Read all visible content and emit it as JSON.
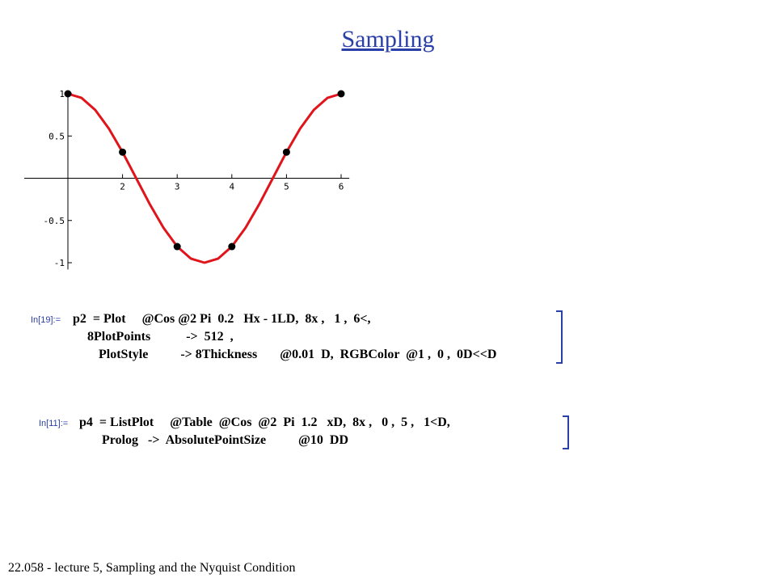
{
  "slide": {
    "title": "Sampling",
    "footer": "22.058 - lecture 5, Sampling and the Nyquist Condition"
  },
  "cells": [
    {
      "label": "In[19]:=",
      "lines": [
        "p2  = Plot     @Cos @2 Pi  0.2   Hx - 1LD,  8x ,   1 ,  6<,",
        "8PlotPoints           ->  512  ,",
        "PlotStyle          -> 8Thickness       @0.01  D,  RGBColor  @1 ,  0 ,  0D<<D"
      ]
    },
    {
      "label": "In[11]:=",
      "lines": [
        "p4  = ListPlot     @Table  @Cos  @2  Pi  1.2   xD,  8x ,   0 ,  5 ,   1<D,",
        "Prolog   ->  AbsolutePointSize          @10  DD"
      ]
    }
  ],
  "chart_data": {
    "type": "line",
    "title": "",
    "xlabel": "",
    "ylabel": "",
    "xlim": [
      0.9,
      6.15
    ],
    "ylim": [
      -1.15,
      1.05
    ],
    "x_ticks": [
      "2",
      "3",
      "4",
      "5",
      "6"
    ],
    "y_ticks": [
      "1",
      "0.5",
      "-0.5",
      "-1"
    ],
    "y_tick_values": [
      1,
      0.5,
      -0.5,
      -1
    ],
    "x_tick_values": [
      2,
      3,
      4,
      5,
      6
    ],
    "series": [
      {
        "kind": "line",
        "color": "#e0141b",
        "x": [
          1.0,
          1.25,
          1.5,
          1.75,
          2.0,
          2.25,
          2.5,
          2.75,
          3.0,
          3.25,
          3.5,
          3.75,
          4.0,
          4.25,
          4.5,
          4.75,
          5.0,
          5.25,
          5.5,
          5.75,
          6.0
        ],
        "y": [
          1.0,
          0.951,
          0.809,
          0.588,
          0.309,
          0.0,
          -0.309,
          -0.588,
          -0.809,
          -0.951,
          -1.0,
          -0.951,
          -0.809,
          -0.588,
          -0.309,
          0.0,
          0.309,
          0.588,
          0.809,
          0.951,
          1.0
        ]
      },
      {
        "kind": "points",
        "color": "#000000",
        "x": [
          1,
          2,
          3,
          4,
          5,
          6
        ],
        "y": [
          1.0,
          0.309,
          -0.809,
          -0.809,
          0.309,
          1.0
        ]
      }
    ],
    "grid": false
  }
}
